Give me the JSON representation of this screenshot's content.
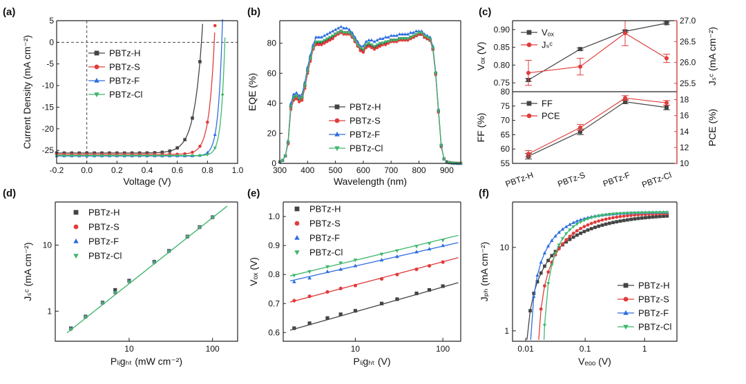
{
  "chart_data": [
    {
      "id": "a",
      "type": "line",
      "panel_label": "(a)",
      "xlabel": "Voltage (V)",
      "ylabel": "Current Density (mA cm⁻²)",
      "xlim": [
        -0.2,
        1.0
      ],
      "ylim": [
        -28,
        5
      ],
      "xticks": [
        "-0.2",
        "0.0",
        "0.2",
        "0.4",
        "0.6",
        "0.8",
        "1.0"
      ],
      "yticks": [
        "5",
        "0",
        "-5",
        "-10",
        "-15",
        "-20",
        "-25"
      ],
      "legend": [
        "PBTz-H",
        "PBTz-S",
        "PBTz-F",
        "PBTz-Cl"
      ],
      "series": [
        {
          "name": "PBTz-H",
          "color": "#444444",
          "marker": "square",
          "jsc": -25.6,
          "voc": 0.76,
          "n": 0.052
        },
        {
          "name": "PBTz-S",
          "color": "#e23b3b",
          "marker": "circle",
          "jsc": -25.9,
          "voc": 0.845,
          "n": 0.036
        },
        {
          "name": "PBTz-F",
          "color": "#2e6de0",
          "marker": "triangle",
          "jsc": -26.3,
          "voc": 0.895,
          "n": 0.027
        },
        {
          "name": "PBTz-Cl",
          "color": "#3fb76b",
          "marker": "triangle-down",
          "jsc": -26.2,
          "voc": 0.915,
          "n": 0.024
        }
      ]
    },
    {
      "id": "b",
      "type": "line",
      "panel_label": "(b)",
      "xlabel": "Wavelength (nm)",
      "ylabel": "EQE (%)",
      "xlim": [
        300,
        950
      ],
      "ylim": [
        0,
        95
      ],
      "xticks": [
        "300",
        "400",
        "500",
        "600",
        "700",
        "800",
        "900"
      ],
      "yticks": [
        "0",
        "20",
        "40",
        "60",
        "80"
      ],
      "legend": [
        "PBTz-H",
        "PBTz-S",
        "PBTz-F",
        "PBTz-Cl"
      ],
      "x": [
        300,
        310,
        320,
        330,
        340,
        350,
        360,
        370,
        380,
        390,
        400,
        410,
        420,
        430,
        440,
        450,
        460,
        470,
        480,
        490,
        500,
        510,
        520,
        530,
        540,
        550,
        560,
        570,
        580,
        590,
        600,
        610,
        620,
        630,
        640,
        650,
        660,
        670,
        680,
        690,
        700,
        710,
        720,
        730,
        740,
        750,
        760,
        770,
        780,
        790,
        800,
        810,
        820,
        830,
        840,
        850,
        860,
        870,
        880,
        890,
        900,
        910,
        920,
        930,
        940,
        950
      ],
      "series": [
        {
          "name": "PBTz-H",
          "color": "#444444",
          "marker": "square",
          "values": [
            1,
            2,
            5,
            14,
            38,
            44,
            45,
            43,
            44,
            52,
            62,
            70,
            77,
            80,
            80,
            80,
            81,
            82,
            83,
            84,
            86,
            87,
            88,
            87,
            87,
            87,
            85,
            82,
            79,
            76,
            75,
            78,
            79,
            78,
            77,
            78,
            79,
            80,
            80,
            81,
            82,
            82,
            82,
            83,
            83,
            83,
            83,
            84,
            84,
            85,
            86,
            86,
            84,
            83,
            82,
            76,
            60,
            35,
            12,
            3,
            1,
            0.5,
            0.2,
            0.1,
            0,
            0
          ]
        },
        {
          "name": "PBTz-S",
          "color": "#e23b3b",
          "marker": "circle",
          "values": [
            1,
            2,
            5,
            13,
            36,
            42,
            43,
            41,
            42,
            50,
            60,
            68,
            76,
            79,
            79,
            79,
            80,
            81,
            82,
            83,
            85,
            86,
            87,
            86,
            86,
            86,
            84,
            81,
            78,
            75,
            74,
            77,
            78,
            77,
            76,
            77,
            78,
            79,
            79,
            80,
            81,
            81,
            81,
            82,
            82,
            82,
            82,
            83,
            84,
            85,
            86,
            86,
            84,
            83,
            82,
            76,
            59,
            34,
            11,
            3,
            1,
            0.5,
            0.2,
            0.1,
            0,
            0
          ]
        },
        {
          "name": "PBTz-F",
          "color": "#2e6de0",
          "marker": "triangle",
          "values": [
            1,
            2,
            5,
            15,
            40,
            46,
            47,
            45,
            46,
            54,
            64,
            72,
            79,
            84,
            84,
            84,
            85,
            86,
            87,
            88,
            89,
            90,
            91,
            90,
            90,
            89,
            87,
            84,
            81,
            78,
            78,
            81,
            82,
            82,
            81,
            82,
            83,
            83,
            84,
            84,
            85,
            85,
            85,
            86,
            86,
            86,
            86,
            87,
            87,
            88,
            88,
            88,
            86,
            85,
            84,
            78,
            61,
            36,
            12,
            3,
            1,
            0.5,
            0.2,
            0.1,
            0,
            0
          ]
        },
        {
          "name": "PBTz-Cl",
          "color": "#3fb76b",
          "marker": "triangle-down",
          "values": [
            1,
            2,
            5,
            14,
            38,
            44,
            45,
            43,
            44,
            52,
            62,
            70,
            77,
            81,
            81,
            81,
            82,
            83,
            84,
            85,
            86,
            87,
            88,
            87,
            87,
            87,
            85,
            82,
            79,
            77,
            76,
            79,
            80,
            79,
            78,
            79,
            80,
            80,
            81,
            81,
            82,
            82,
            82,
            83,
            83,
            83,
            83,
            84,
            85,
            86,
            87,
            87,
            85,
            84,
            83,
            77,
            60,
            35,
            12,
            3,
            1,
            0.5,
            0.2,
            0.1,
            0,
            0
          ]
        }
      ]
    },
    {
      "id": "c",
      "type": "line",
      "panel_label": "(c)",
      "categories": [
        "PBTz-H",
        "PBTz-S",
        "PBTz-F",
        "PBTz-Cl"
      ],
      "top": {
        "ylabel_left": "Vₒₓ (V)",
        "ylabel_right": "Jₛᶜ (mA cm⁻²)",
        "ylim_left": [
          0.725,
          0.925
        ],
        "ylim_right": [
          25.3,
          27.0
        ],
        "yticks_left": [
          "0.75",
          "0.80",
          "0.85",
          "0.90"
        ],
        "yticks_right": [
          "25.5",
          "26.0",
          "26.5",
          "27.0"
        ],
        "legend": [
          "Vₒₓ",
          "Jₛᶜ"
        ],
        "voc": {
          "name": "Voc",
          "color": "#444444",
          "values": [
            0.758,
            0.845,
            0.895,
            0.918
          ],
          "err": [
            0.004,
            0.003,
            0.003,
            0.003
          ]
        },
        "jsc": {
          "name": "Jsc",
          "color": "#e23b3b",
          "values": [
            25.75,
            25.9,
            26.7,
            26.1
          ],
          "err": [
            0.3,
            0.2,
            0.3,
            0.1
          ]
        }
      },
      "bottom": {
        "ylabel_left": "FF (%)",
        "ylabel_right": "PCE (%)",
        "ylim_left": [
          55,
          80
        ],
        "ylim_right": [
          10,
          19
        ],
        "yticks_left": [
          "55",
          "60",
          "65",
          "70",
          "75",
          "80"
        ],
        "yticks_right": [
          "10",
          "12",
          "14",
          "16",
          "18"
        ],
        "legend": [
          "FF",
          "PCE"
        ],
        "ff": {
          "name": "FF",
          "color": "#444444",
          "values": [
            57.5,
            66,
            76.5,
            74.5
          ],
          "err": [
            1.0,
            1.0,
            0.7,
            0.8
          ]
        },
        "pce": {
          "name": "PCE",
          "color": "#e23b3b",
          "values": [
            11.2,
            14.5,
            18.2,
            17.6
          ],
          "err": [
            0.4,
            0.4,
            0.3,
            0.3
          ]
        }
      }
    },
    {
      "id": "d",
      "type": "scatter",
      "panel_label": "(d)",
      "xlabel": "Pₗᵢgₕₜ (mW cm⁻²)",
      "ylabel": "Jₛᶜ (mA cm⁻²)",
      "xscale": "log",
      "yscale": "log",
      "xlim": [
        1.3,
        200
      ],
      "ylim": [
        0.35,
        45
      ],
      "xticks": [
        {
          "value": 10,
          "label": "10"
        },
        {
          "value": 100,
          "label": "100"
        }
      ],
      "yticks": [
        {
          "value": 1,
          "label": "1"
        },
        {
          "value": 10,
          "label": "10"
        }
      ],
      "legend": [
        "PBTz-H",
        "PBTz-S",
        "PBTz-F",
        "PBTz-Cl"
      ],
      "x": [
        2,
        3,
        4.8,
        6.8,
        10,
        20,
        30,
        50,
        70,
        100
      ],
      "fit": {
        "x": [
          1.8,
          150
        ],
        "y": [
          0.47,
          39
        ],
        "color": "#3fb76b"
      },
      "series": [
        {
          "name": "PBTz-H",
          "color": "#444444",
          "marker": "square",
          "values": [
            0.55,
            0.83,
            1.35,
            2.1,
            2.9,
            5.6,
            8.2,
            13.5,
            18.8,
            26.5
          ]
        },
        {
          "name": "PBTz-S",
          "color": "#e23b3b",
          "marker": "circle",
          "values": [
            0.54,
            0.82,
            1.33,
            1.9,
            2.8,
            5.5,
            8.1,
            13.4,
            18.6,
            26.3
          ]
        },
        {
          "name": "PBTz-F",
          "color": "#2e6de0",
          "marker": "triangle",
          "values": [
            0.55,
            0.83,
            1.34,
            1.95,
            2.85,
            5.6,
            8.2,
            13.5,
            18.8,
            26.6
          ]
        },
        {
          "name": "PBTz-Cl",
          "color": "#3fb76b",
          "marker": "triangle-down",
          "values": [
            0.53,
            0.81,
            1.32,
            1.9,
            2.75,
            5.4,
            8.0,
            13.3,
            18.5,
            26.2
          ]
        }
      ]
    },
    {
      "id": "e",
      "type": "scatter",
      "panel_label": "(e)",
      "xlabel": "Pₗᵢgₕₜ (V)",
      "ylabel": "Vₒₓ (V)",
      "xscale": "log",
      "xlim": [
        1.5,
        160
      ],
      "ylim": [
        0.57,
        1.05
      ],
      "xticks": [
        {
          "value": 10,
          "label": "10"
        },
        {
          "value": 100,
          "label": "100"
        }
      ],
      "yticks": [
        "0.6",
        "0.7",
        "0.8",
        "0.9",
        "1.0"
      ],
      "legend": [
        "PBTz-H",
        "PBTz-S",
        "PBTz-F",
        "PBTz-Cl"
      ],
      "x": [
        2,
        3,
        4.8,
        6.8,
        10,
        20,
        30,
        50,
        70,
        100
      ],
      "series": [
        {
          "name": "PBTz-H",
          "color": "#444444",
          "marker": "square",
          "values": [
            0.615,
            0.632,
            0.65,
            0.663,
            0.675,
            0.7,
            0.715,
            0.735,
            0.747,
            0.76
          ],
          "fit": [
            0.608,
            0.772
          ]
        },
        {
          "name": "PBTz-S",
          "color": "#e23b3b",
          "marker": "circle",
          "values": [
            0.71,
            0.725,
            0.74,
            0.752,
            0.762,
            0.785,
            0.8,
            0.818,
            0.83,
            0.843
          ],
          "fit": [
            0.705,
            0.858
          ]
        },
        {
          "name": "PBTz-F",
          "color": "#2e6de0",
          "marker": "triangle",
          "values": [
            0.775,
            0.788,
            0.81,
            0.818,
            0.83,
            0.85,
            0.862,
            0.878,
            0.888,
            0.9
          ],
          "fit": [
            0.778,
            0.91
          ]
        },
        {
          "name": "PBTz-Cl",
          "color": "#3fb76b",
          "marker": "triangle-down",
          "values": [
            0.797,
            0.81,
            0.827,
            0.84,
            0.85,
            0.87,
            0.882,
            0.897,
            0.907,
            0.918
          ],
          "fit": [
            0.795,
            0.935
          ]
        }
      ]
    },
    {
      "id": "f",
      "type": "line",
      "panel_label": "(f)",
      "xlabel": "Vₑₒₒ (V)",
      "ylabel": "Jₚₕ (mA cm⁻²)",
      "xscale": "log",
      "yscale": "log",
      "xlim": [
        0.006,
        3.5
      ],
      "ylim": [
        0.75,
        35
      ],
      "xticks": [
        {
          "value": 0.01,
          "label": "0.01"
        },
        {
          "value": 0.1,
          "label": "0.1"
        },
        {
          "value": 1,
          "label": "1"
        }
      ],
      "yticks": [
        {
          "value": 1,
          "label": "1"
        },
        {
          "value": 10,
          "label": "10"
        }
      ],
      "legend": [
        "PBTz-H",
        "PBTz-S",
        "PBTz-F",
        "PBTz-Cl"
      ],
      "series": [
        {
          "name": "PBTz-H",
          "color": "#444444",
          "marker": "square",
          "jsat": 25.5,
          "v0": 0.0095,
          "k": 0.7
        },
        {
          "name": "PBTz-S",
          "color": "#e23b3b",
          "marker": "circle",
          "jsat": 26.0,
          "v0": 0.0155,
          "k": 1.05
        },
        {
          "name": "PBTz-F",
          "color": "#2e6de0",
          "marker": "triangle",
          "jsat": 26.5,
          "v0": 0.0115,
          "k": 1.3
        },
        {
          "name": "PBTz-Cl",
          "color": "#3fb76b",
          "marker": "triangle-down",
          "jsat": 26.3,
          "v0": 0.0195,
          "k": 1.6
        }
      ]
    }
  ]
}
